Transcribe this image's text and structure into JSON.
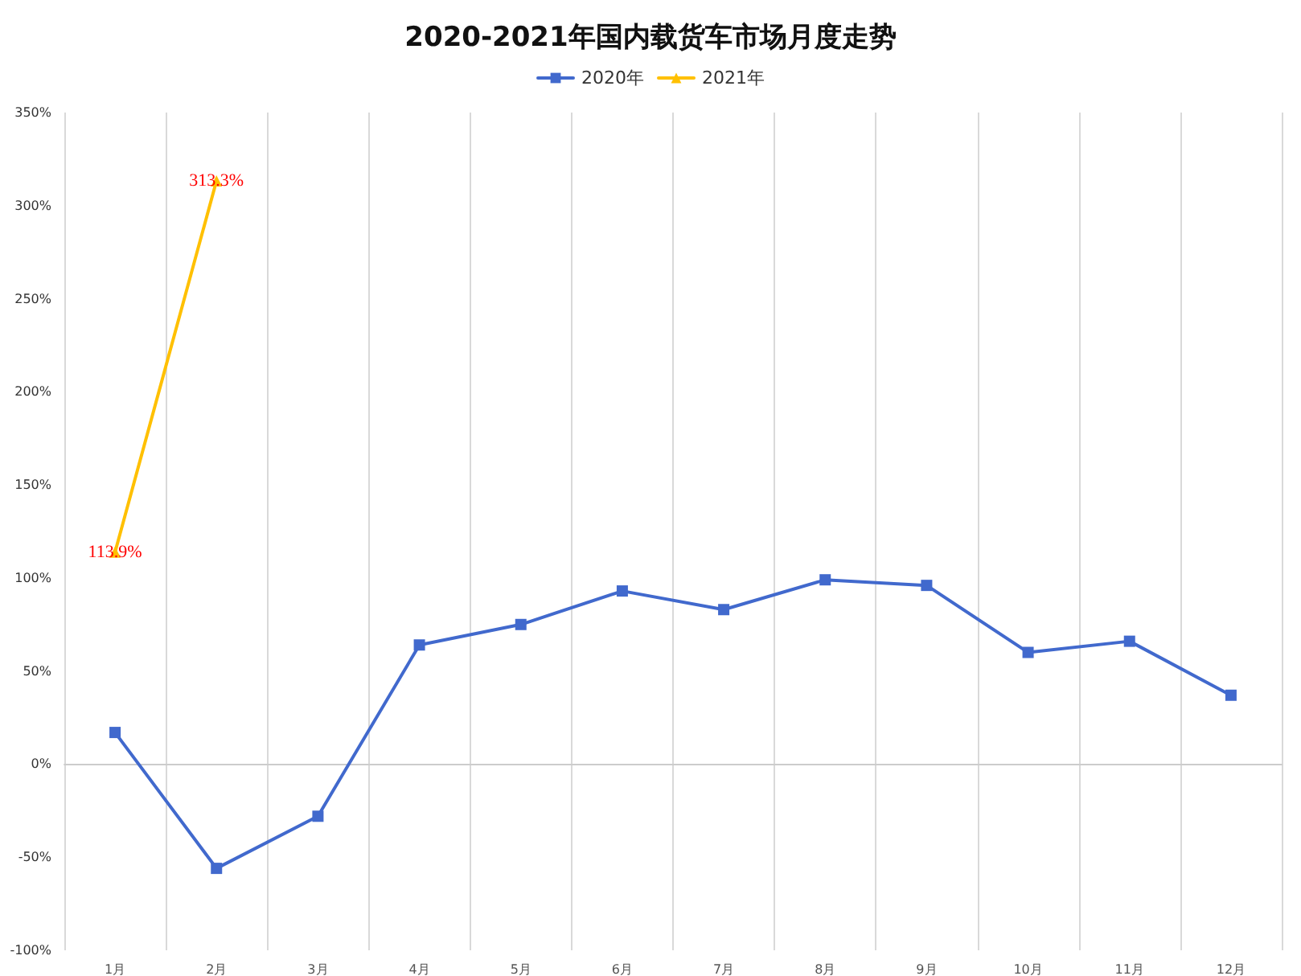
{
  "chart_data": {
    "type": "line",
    "title": "2020-2021年国内载货车市场月度走势",
    "categories": [
      "1月",
      "2月",
      "3月",
      "4月",
      "5月",
      "6月",
      "7月",
      "8月",
      "9月",
      "10月",
      "11月",
      "12月"
    ],
    "series": [
      {
        "name": "2020年",
        "color": "#4169cd",
        "marker": "square",
        "values": [
          17,
          -56,
          -28,
          64,
          75,
          93,
          83,
          99,
          96,
          60,
          66,
          37
        ]
      },
      {
        "name": "2021年",
        "color": "#ffc000",
        "marker": "triangle",
        "values": [
          113.9,
          313.3,
          null,
          null,
          null,
          null,
          null,
          null,
          null,
          null,
          null,
          null
        ],
        "value_labels": [
          "113.9%",
          "313.3%",
          null,
          null,
          null,
          null,
          null,
          null,
          null,
          null,
          null,
          null
        ]
      }
    ],
    "ylim": [
      -100,
      350
    ],
    "yticks": [
      {
        "value": -100,
        "label": "-100%"
      },
      {
        "value": -50,
        "label": "-50%"
      },
      {
        "value": 0,
        "label": "0%"
      },
      {
        "value": 50,
        "label": "50%"
      },
      {
        "value": 100,
        "label": "100%"
      },
      {
        "value": 150,
        "label": "150%"
      },
      {
        "value": 200,
        "label": "200%"
      },
      {
        "value": 250,
        "label": "250%"
      },
      {
        "value": 300,
        "label": "300%"
      },
      {
        "value": 350,
        "label": "350%"
      }
    ],
    "grid": "x",
    "legend": "top",
    "line_style": "solid"
  }
}
